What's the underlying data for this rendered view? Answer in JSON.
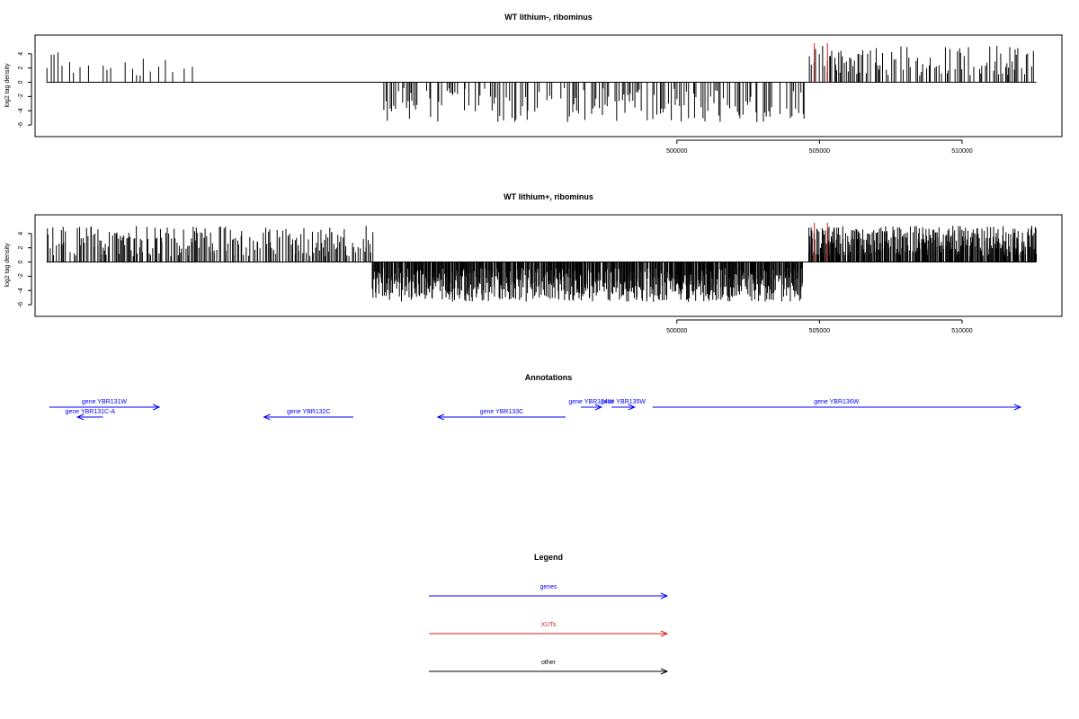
{
  "chart_data": [
    {
      "type": "bar",
      "title": "WT lithium-, ribominus",
      "xlabel": "",
      "ylabel": "log2 tag density",
      "xlim": [
        477500,
        513500
      ],
      "ylim": [
        -7,
        6
      ],
      "yticks": [
        -6,
        -4,
        -2,
        0,
        2,
        4
      ],
      "xticks": [
        500000,
        505000,
        510000
      ],
      "xtick_labels": [
        "500000",
        "505000",
        "510000"
      ],
      "colors": {
        "bars": "#000000",
        "xut_marks": "#d42020",
        "axis": "#000000"
      },
      "positive_region": [
        477900,
        483200
      ],
      "negative_region": [
        489600,
        504500
      ],
      "positive_region_2": [
        504600,
        512600
      ],
      "xut_marks_x": [
        504820,
        505280
      ],
      "xut_marks_y": [
        5.5,
        5.5
      ],
      "density": "sparse",
      "seed": 11
    },
    {
      "type": "bar",
      "title": "WT lithium+, ribominus",
      "xlabel": "",
      "ylabel": "log2 tag density",
      "xlim": [
        477500,
        513500
      ],
      "ylim": [
        -7,
        6
      ],
      "yticks": [
        -6,
        -4,
        -2,
        0,
        2,
        4
      ],
      "xticks": [
        500000,
        505000,
        510000
      ],
      "xtick_labels": [
        "500000",
        "505000",
        "510000"
      ],
      "colors": {
        "bars": "#000000",
        "xut_marks": "#d42020",
        "axis": "#000000"
      },
      "positive_region": [
        477900,
        489300
      ],
      "negative_region": [
        489300,
        504400
      ],
      "positive_region_2": [
        504600,
        512600
      ],
      "xut_marks_x": [
        504820,
        505280
      ],
      "xut_marks_y": [
        5.5,
        5.5
      ],
      "density": "dense",
      "seed": 29
    }
  ],
  "annotations": {
    "title": "Annotations",
    "color": "#0000ff",
    "genes": [
      {
        "label": "gene YBR131W",
        "start": 477800,
        "end": 479950,
        "strand": "+",
        "row": 0
      },
      {
        "label": "gene YBR131C-A",
        "start": 478350,
        "end": 478850,
        "strand": "-",
        "row": 1
      },
      {
        "label": "gene YBR132C",
        "start": 482000,
        "end": 483750,
        "strand": "-",
        "row": 1
      },
      {
        "label": "gene YBR133C",
        "start": 485400,
        "end": 487900,
        "strand": "-",
        "row": 1
      },
      {
        "label": "gene YBR134W",
        "start": 488200,
        "end": 488600,
        "strand": "+",
        "row": 0
      },
      {
        "label": "gene YBR135W",
        "start": 488800,
        "end": 489250,
        "strand": "+",
        "row": 0
      },
      {
        "label": "gene YBR136W",
        "start": 489600,
        "end": 496800,
        "strand": "+",
        "row": 0
      }
    ]
  },
  "legend": {
    "title": "Legend",
    "items": [
      {
        "label": "genes",
        "color": "#0000ff"
      },
      {
        "label": "XUTs",
        "color": "#d42020"
      },
      {
        "label": "other",
        "color": "#000000"
      }
    ]
  }
}
